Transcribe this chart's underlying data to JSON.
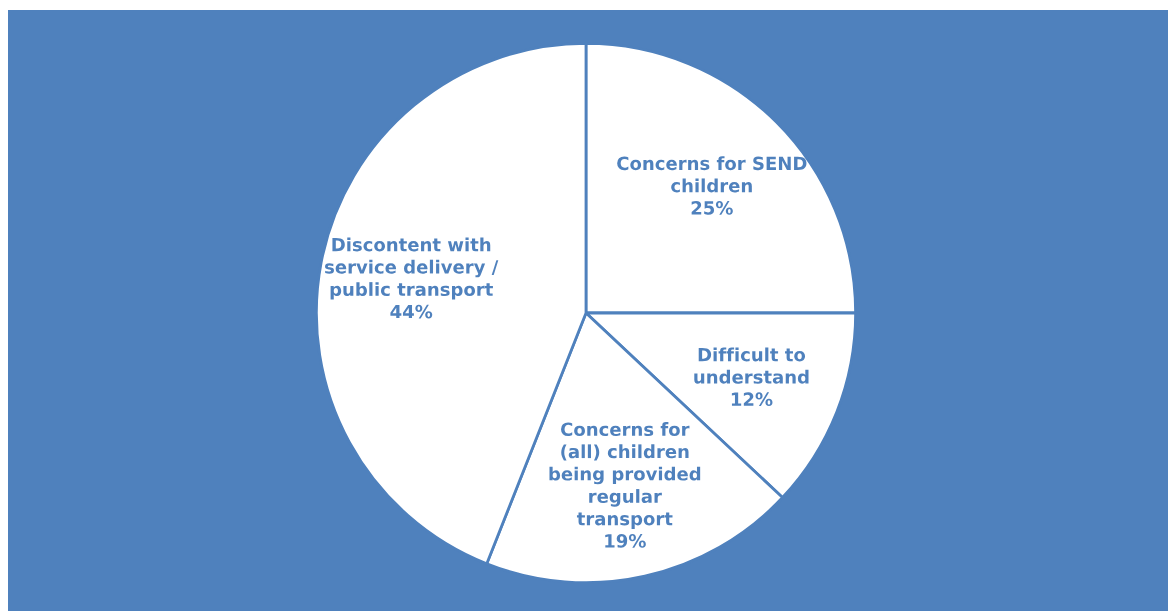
{
  "chart_data": {
    "type": "pie",
    "categories": [
      "Concerns for SEND\nchildren",
      "Difficult to\nunderstand",
      "Concerns for\n(all) children\nbeing provided\nregular\ntransport",
      "Discontent with\nservice delivery /\npublic transport"
    ],
    "values": [
      25,
      12,
      19,
      44
    ],
    "value_labels": [
      "25%",
      "12%",
      "19%",
      "44%"
    ],
    "colors": [
      "#ffffff",
      "#ffffff",
      "#ffffff",
      "#ffffff"
    ]
  }
}
